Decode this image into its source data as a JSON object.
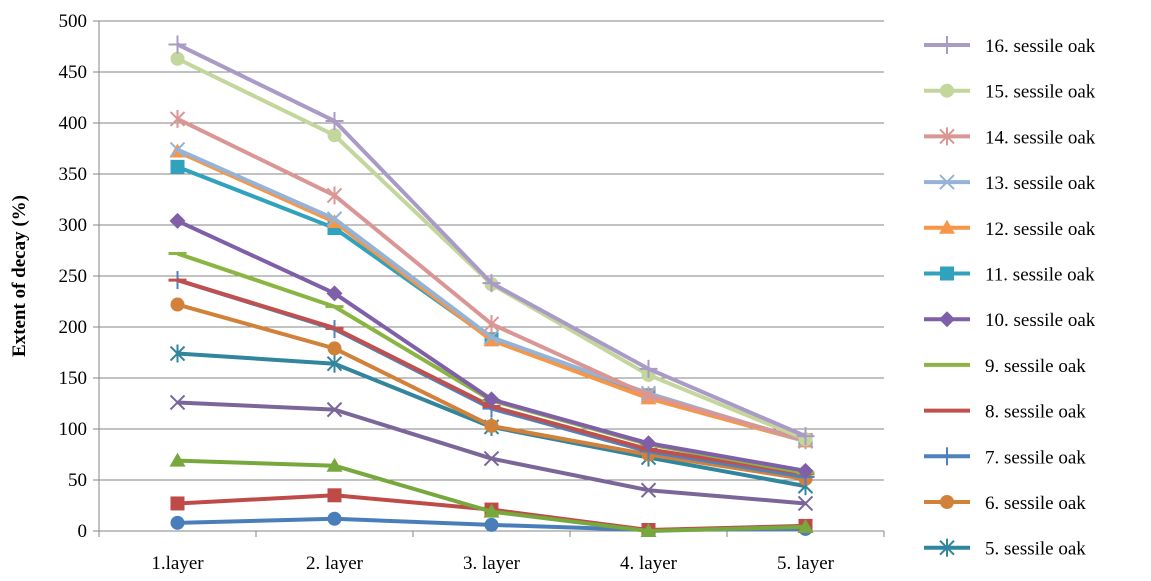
{
  "chart_data": {
    "type": "line",
    "title": "",
    "xlabel": "",
    "ylabel": "Extent of decay (%)",
    "ylim": [
      0,
      500
    ],
    "yticks": [
      0,
      50,
      100,
      150,
      200,
      250,
      300,
      350,
      400,
      450,
      500
    ],
    "grid": true,
    "legend_position": "right",
    "categories": [
      "1.layer",
      "2. layer",
      "3. layer",
      "4. layer",
      "5. layer"
    ],
    "series": [
      {
        "name": "16. sessile oak",
        "color": "#A99BC6",
        "marker": "plus",
        "values": [
          477,
          402,
          243,
          159,
          93
        ]
      },
      {
        "name": "15. sessile oak",
        "color": "#C3D69B",
        "marker": "circle",
        "values": [
          463,
          388,
          242,
          153,
          90
        ]
      },
      {
        "name": "14. sessile oak",
        "color": "#DA9694",
        "marker": "star",
        "values": [
          404,
          329,
          203,
          133,
          89
        ]
      },
      {
        "name": "13. sessile oak",
        "color": "#95B3D7",
        "marker": "x",
        "values": [
          374,
          306,
          190,
          135,
          88
        ]
      },
      {
        "name": "12. sessile oak",
        "color": "#F79646",
        "marker": "triangle",
        "values": [
          372,
          303,
          187,
          130,
          88
        ]
      },
      {
        "name": "11. sessile oak",
        "color": "#31A2BE",
        "marker": "square",
        "values": [
          357,
          297,
          188,
          133,
          89
        ]
      },
      {
        "name": "10. sessile oak",
        "color": "#7F5FA8",
        "marker": "diamond",
        "values": [
          304,
          233,
          129,
          86,
          59
        ]
      },
      {
        "name": "9. sessile oak",
        "color": "#8BB543",
        "marker": "dash",
        "values": [
          272,
          220,
          128,
          85,
          57
        ]
      },
      {
        "name": "8. sessile oak",
        "color": "#C0504D",
        "marker": "dash",
        "values": [
          246,
          199,
          122,
          80,
          56
        ]
      },
      {
        "name": "7. sessile oak",
        "color": "#4F81BD",
        "marker": "plus",
        "values": [
          246,
          198,
          120,
          78,
          53
        ]
      },
      {
        "name": "6. sessile oak",
        "color": "#D2813A",
        "marker": "circle",
        "values": [
          222,
          179,
          103,
          75,
          51
        ]
      },
      {
        "name": "5. sessile oak",
        "color": "#31859C",
        "marker": "star",
        "values": [
          174,
          164,
          102,
          72,
          44
        ]
      },
      {
        "name": "",
        "color": "#7A6699",
        "marker": "x",
        "values": [
          126,
          119,
          71,
          40,
          27
        ]
      },
      {
        "name": "",
        "color": "#77A83E",
        "marker": "triangle",
        "values": [
          69,
          64,
          19,
          0,
          4
        ]
      },
      {
        "name": "",
        "color": "#BE4B48",
        "marker": "square",
        "values": [
          27,
          35,
          21,
          1,
          5
        ]
      },
      {
        "name": "",
        "color": "#4A7EBB",
        "marker": "circle",
        "values": [
          8,
          12,
          6,
          1,
          2
        ]
      }
    ]
  }
}
